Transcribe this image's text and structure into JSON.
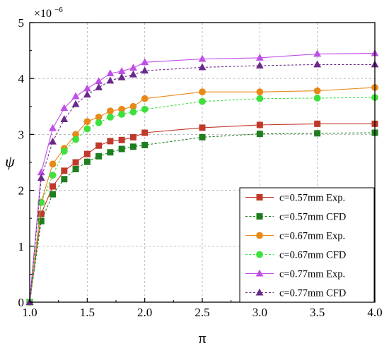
{
  "chart_data": {
    "type": "line",
    "xlabel": "π",
    "ylabel": "ψ",
    "y_multiplier": "×10",
    "y_multiplier_exp": "−6",
    "xlim": [
      1.0,
      4.0
    ],
    "ylim": [
      0,
      5
    ],
    "xticks": [
      "1.0",
      "1.5",
      "2.0",
      "2.5",
      "3.0",
      "3.5",
      "4.0"
    ],
    "yticks": [
      "0",
      "1",
      "2",
      "3",
      "4",
      "5"
    ],
    "grid": true,
    "legend_position": "bottom-right",
    "series": [
      {
        "name": "c=0.57mm Exp.",
        "color": "#c0392b",
        "marker": "square",
        "line_style": "solid",
        "x": [
          1.0,
          1.1,
          1.2,
          1.3,
          1.4,
          1.5,
          1.6,
          1.7,
          1.8,
          1.9,
          2.0,
          2.5,
          3.0,
          3.5,
          4.0
        ],
        "y": [
          0.0,
          1.58,
          2.07,
          2.35,
          2.5,
          2.65,
          2.8,
          2.88,
          2.9,
          2.95,
          3.03,
          3.12,
          3.17,
          3.19,
          3.19
        ]
      },
      {
        "name": "c=0.57mm CFD",
        "color": "#1e7d1e",
        "marker": "square",
        "line_style": "dashed",
        "x": [
          1.0,
          1.1,
          1.2,
          1.3,
          1.4,
          1.5,
          1.6,
          1.7,
          1.8,
          1.9,
          2.0,
          2.5,
          3.0,
          3.5,
          4.0
        ],
        "y": [
          0.0,
          1.45,
          1.93,
          2.2,
          2.38,
          2.51,
          2.61,
          2.68,
          2.74,
          2.78,
          2.81,
          2.95,
          3.01,
          3.02,
          3.03
        ]
      },
      {
        "name": "c=0.67mm Exp.",
        "color": "#e8891a",
        "marker": "circle",
        "line_style": "solid",
        "x": [
          1.0,
          1.1,
          1.2,
          1.3,
          1.4,
          1.5,
          1.6,
          1.7,
          1.8,
          1.9,
          2.0,
          2.5,
          3.0,
          3.5,
          4.0
        ],
        "y": [
          0.0,
          1.79,
          2.47,
          2.75,
          3.0,
          3.23,
          3.31,
          3.42,
          3.45,
          3.5,
          3.64,
          3.76,
          3.76,
          3.78,
          3.84
        ]
      },
      {
        "name": "c=0.67mm CFD",
        "color": "#3ee03e",
        "marker": "circle",
        "line_style": "dashed",
        "x": [
          1.0,
          1.1,
          1.2,
          1.3,
          1.4,
          1.5,
          1.6,
          1.7,
          1.8,
          1.9,
          2.0,
          2.5,
          3.0,
          3.5,
          4.0
        ],
        "y": [
          0.0,
          1.78,
          2.27,
          2.7,
          2.91,
          3.1,
          3.21,
          3.31,
          3.36,
          3.4,
          3.45,
          3.59,
          3.64,
          3.65,
          3.66
        ]
      },
      {
        "name": "c=0.77mm Exp.",
        "color": "#c04ee8",
        "marker": "triangle",
        "line_style": "solid",
        "x": [
          1.0,
          1.1,
          1.2,
          1.3,
          1.4,
          1.5,
          1.6,
          1.7,
          1.8,
          1.9,
          2.0,
          2.5,
          3.0,
          3.5,
          4.0
        ],
        "y": [
          0.0,
          2.32,
          3.11,
          3.47,
          3.68,
          3.82,
          3.95,
          4.09,
          4.13,
          4.19,
          4.29,
          4.35,
          4.37,
          4.44,
          4.45
        ]
      },
      {
        "name": "c=0.77mm CFD",
        "color": "#6a2a8a",
        "marker": "triangle",
        "line_style": "dashed",
        "x": [
          1.0,
          1.1,
          1.2,
          1.3,
          1.4,
          1.5,
          1.6,
          1.7,
          1.8,
          1.9,
          2.0,
          2.5,
          3.0,
          3.5,
          4.0
        ],
        "y": [
          0.0,
          2.22,
          2.87,
          3.27,
          3.54,
          3.71,
          3.84,
          3.96,
          4.02,
          4.07,
          4.14,
          4.2,
          4.23,
          4.25,
          4.25
        ]
      }
    ]
  }
}
